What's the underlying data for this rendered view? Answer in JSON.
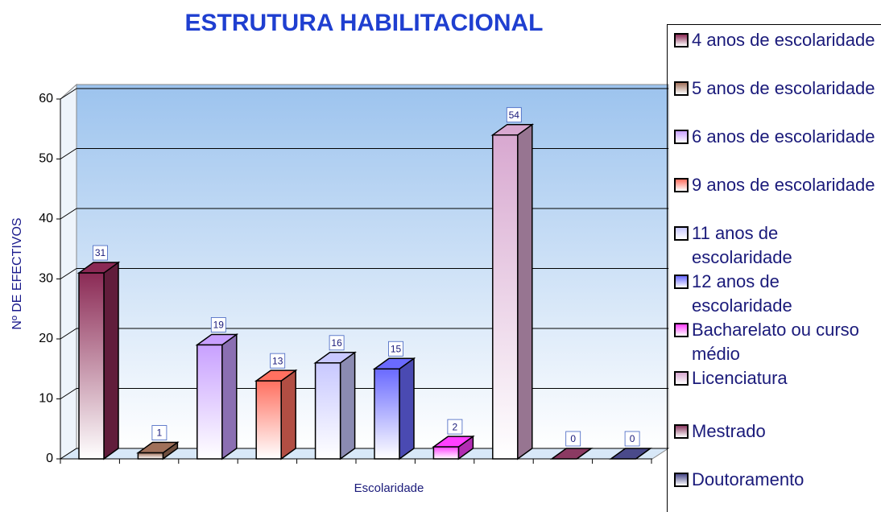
{
  "chart_data": {
    "type": "bar",
    "title": "ESTRUTURA  HABILITACIONAL",
    "x_label": "Escolaridade",
    "y_label": "Nº DE EFECTIVOS",
    "categories": [
      "4 anos de escolaridade",
      "5 anos de escolaridade",
      "6 anos de escolaridade",
      "9 anos de escolaridade",
      "11 anos de escolaridade",
      "12 anos de escolaridade",
      "Bacharelato ou curso médio",
      "Licenciatura",
      "Mestrado",
      "Doutoramento"
    ],
    "values": [
      31,
      1,
      19,
      13,
      16,
      15,
      2,
      54,
      0,
      0
    ],
    "colors": [
      "#8b2a55",
      "#a0705a",
      "#c8a0ff",
      "#ff7060",
      "#c8c8ff",
      "#6a6aff",
      "#ff40ff",
      "#d8a8d0",
      "#8b3a62",
      "#4a4a8a"
    ],
    "ylim": [
      0,
      60
    ],
    "yticks": [
      0,
      10,
      20,
      30,
      40,
      50,
      60
    ],
    "grid": true,
    "legend": "right"
  }
}
